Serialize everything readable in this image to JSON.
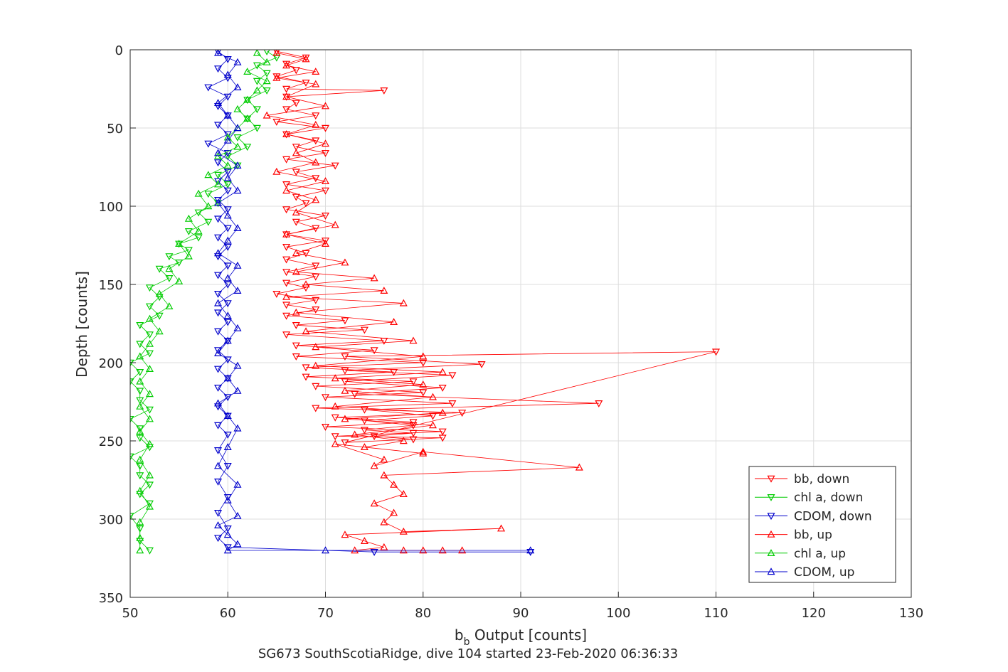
{
  "chart_data": {
    "type": "line",
    "xlabel": "b",
    "xlabel_sub": "b",
    "xlabel_rest": " Output [counts]",
    "ylabel": "Depth [counts]",
    "caption": "SG673 SouthScotiaRidge, dive 104 started 23-Feb-2020 06:36:33",
    "xlim": [
      50,
      130
    ],
    "ylim": [
      0,
      350
    ],
    "y_reversed": true,
    "grid": true,
    "xticks": [
      "50",
      "60",
      "70",
      "80",
      "90",
      "100",
      "110",
      "120",
      "130"
    ],
    "yticks": [
      "0",
      "50",
      "100",
      "150",
      "200",
      "250",
      "300",
      "350"
    ],
    "legend_position": "bottom-right",
    "series": [
      {
        "name": "bb, down",
        "color": "#ff0000",
        "marker": "triangle-down",
        "x": [
          65,
          68,
          66,
          67,
          65,
          68,
          66,
          76,
          66,
          67,
          66,
          69,
          65,
          70,
          66,
          69,
          67,
          70,
          66,
          71,
          67,
          69,
          66,
          70,
          67,
          68,
          66,
          70,
          67,
          69,
          66,
          70,
          66,
          68,
          66,
          69,
          66,
          69,
          66,
          68,
          65,
          69,
          66,
          69,
          66,
          72,
          67,
          74,
          66,
          76,
          67,
          75,
          67,
          80,
          68,
          77,
          68,
          79,
          69,
          80,
          70,
          83,
          69,
          84,
          71,
          79,
          70,
          82,
          71,
          82,
          72,
          110,
          72,
          86,
          72,
          83,
          72,
          82,
          73,
          98,
          74,
          81,
          74,
          79,
          74,
          79,
          75,
          79
        ],
        "y": [
          1,
          5,
          9,
          13,
          17,
          21,
          25,
          26,
          30,
          34,
          38,
          42,
          46,
          50,
          54,
          58,
          62,
          66,
          70,
          74,
          78,
          82,
          86,
          90,
          94,
          98,
          102,
          106,
          110,
          114,
          118,
          122,
          126,
          130,
          134,
          138,
          142,
          145,
          149,
          152,
          156,
          160,
          163,
          166,
          170,
          173,
          176,
          179,
          182,
          186,
          189,
          192,
          196,
          200,
          203,
          206,
          209,
          212,
          215,
          219,
          222,
          226,
          229,
          232,
          235,
          238,
          241,
          244,
          247,
          248,
          251,
          193,
          196,
          201,
          205,
          208,
          212,
          216,
          220,
          226,
          230,
          234,
          237,
          240,
          243,
          245,
          247,
          249
        ]
      },
      {
        "name": "chl a, down",
        "color": "#00cc00",
        "marker": "triangle-down",
        "x": [
          64,
          65,
          63,
          64,
          63,
          64,
          62,
          63,
          62,
          63,
          61,
          62,
          60,
          61,
          59,
          60,
          58,
          59,
          57,
          58,
          56,
          57,
          55,
          56,
          54,
          55,
          53,
          54,
          52,
          53,
          52,
          53,
          51,
          52,
          51,
          52,
          50,
          51,
          50,
          51,
          51,
          52,
          50,
          51,
          51,
          52,
          50,
          51,
          51,
          52,
          51,
          52,
          50,
          51,
          51,
          52
        ],
        "y": [
          1,
          5,
          10,
          15,
          20,
          26,
          32,
          38,
          44,
          50,
          56,
          62,
          68,
          74,
          80,
          86,
          92,
          98,
          104,
          110,
          116,
          120,
          124,
          128,
          132,
          136,
          140,
          146,
          152,
          158,
          164,
          170,
          176,
          182,
          188,
          194,
          200,
          206,
          212,
          218,
          224,
          230,
          236,
          242,
          248,
          254,
          260,
          266,
          272,
          278,
          284,
          290,
          298,
          306,
          314,
          320
        ]
      },
      {
        "name": "CDOM, down",
        "color": "#0000cc",
        "marker": "triangle-down",
        "x": [
          59,
          60,
          59,
          60,
          58,
          60,
          59,
          60,
          59,
          60,
          58,
          60,
          59,
          60,
          59,
          60,
          59,
          60,
          59,
          60,
          59,
          60,
          59,
          60,
          59,
          60,
          59,
          60,
          59,
          60,
          59,
          60,
          59,
          60,
          59,
          60,
          59,
          60,
          59,
          60,
          59,
          60,
          59,
          60,
          59,
          60,
          59,
          60,
          59,
          60,
          75,
          91
        ],
        "y": [
          1,
          6,
          12,
          18,
          24,
          30,
          36,
          42,
          48,
          54,
          60,
          66,
          72,
          78,
          84,
          90,
          96,
          102,
          108,
          114,
          120,
          126,
          132,
          138,
          144,
          150,
          156,
          162,
          168,
          174,
          180,
          186,
          192,
          198,
          204,
          210,
          216,
          222,
          228,
          234,
          240,
          246,
          256,
          266,
          276,
          286,
          296,
          306,
          312,
          318,
          321,
          321
        ]
      },
      {
        "name": "bb, up",
        "color": "#ff0000",
        "marker": "triangle-up",
        "x": [
          65,
          68,
          66,
          69,
          65,
          69,
          66,
          70,
          64,
          69,
          66,
          70,
          67,
          69,
          65,
          70,
          66,
          69,
          67,
          71,
          66,
          70,
          67,
          72,
          67,
          75,
          68,
          76,
          66,
          78,
          67,
          77,
          68,
          79,
          69,
          80,
          69,
          82,
          71,
          80,
          72,
          81,
          71,
          82,
          72,
          81,
          73,
          78,
          74,
          80,
          71,
          76,
          75,
          80,
          96,
          76,
          77,
          78,
          75,
          77,
          76,
          78,
          88,
          72,
          74,
          76,
          73,
          78,
          80,
          82,
          84
        ],
        "y": [
          2,
          6,
          10,
          14,
          18,
          22,
          30,
          36,
          42,
          48,
          54,
          60,
          66,
          72,
          78,
          84,
          90,
          96,
          104,
          112,
          118,
          124,
          130,
          136,
          142,
          146,
          150,
          154,
          158,
          162,
          168,
          174,
          180,
          186,
          190,
          196,
          202,
          206,
          210,
          214,
          218,
          222,
          228,
          232,
          236,
          240,
          246,
          250,
          254,
          258,
          252,
          262,
          266,
          257,
          267,
          272,
          278,
          284,
          290,
          296,
          302,
          308,
          306,
          310,
          314,
          318,
          320,
          320,
          320,
          320,
          320
        ]
      },
      {
        "name": "chl a, up",
        "color": "#00cc00",
        "marker": "triangle-up",
        "x": [
          63,
          64,
          62,
          64,
          63,
          62,
          61,
          62,
          61,
          60,
          61,
          59,
          60,
          58,
          59,
          57,
          58,
          56,
          57,
          55,
          56,
          54,
          55,
          53,
          54,
          52,
          53,
          52,
          51,
          52,
          51,
          52,
          51,
          52,
          51,
          52,
          51,
          52,
          51,
          52,
          51,
          51,
          51
        ],
        "y": [
          2,
          8,
          14,
          20,
          26,
          32,
          38,
          44,
          50,
          56,
          62,
          68,
          74,
          80,
          86,
          92,
          100,
          108,
          116,
          124,
          132,
          140,
          148,
          156,
          164,
          172,
          180,
          188,
          196,
          204,
          212,
          220,
          228,
          236,
          244,
          252,
          262,
          272,
          282,
          292,
          302,
          312,
          320
        ]
      },
      {
        "name": "CDOM, up",
        "color": "#0000cc",
        "marker": "triangle-up",
        "x": [
          59,
          61,
          60,
          61,
          59,
          60,
          61,
          60,
          59,
          61,
          60,
          61,
          59,
          60,
          61,
          60,
          59,
          61,
          60,
          61,
          59,
          60,
          61,
          60,
          59,
          61,
          60,
          61,
          59,
          60,
          61,
          60,
          59,
          61,
          60,
          61,
          59,
          60,
          61,
          60,
          70,
          91
        ],
        "y": [
          2,
          8,
          16,
          24,
          34,
          42,
          50,
          58,
          66,
          74,
          82,
          90,
          98,
          106,
          114,
          122,
          130,
          138,
          146,
          154,
          162,
          170,
          178,
          186,
          194,
          202,
          210,
          218,
          226,
          234,
          242,
          254,
          266,
          278,
          288,
          298,
          304,
          310,
          316,
          320,
          320,
          320
        ]
      }
    ]
  }
}
